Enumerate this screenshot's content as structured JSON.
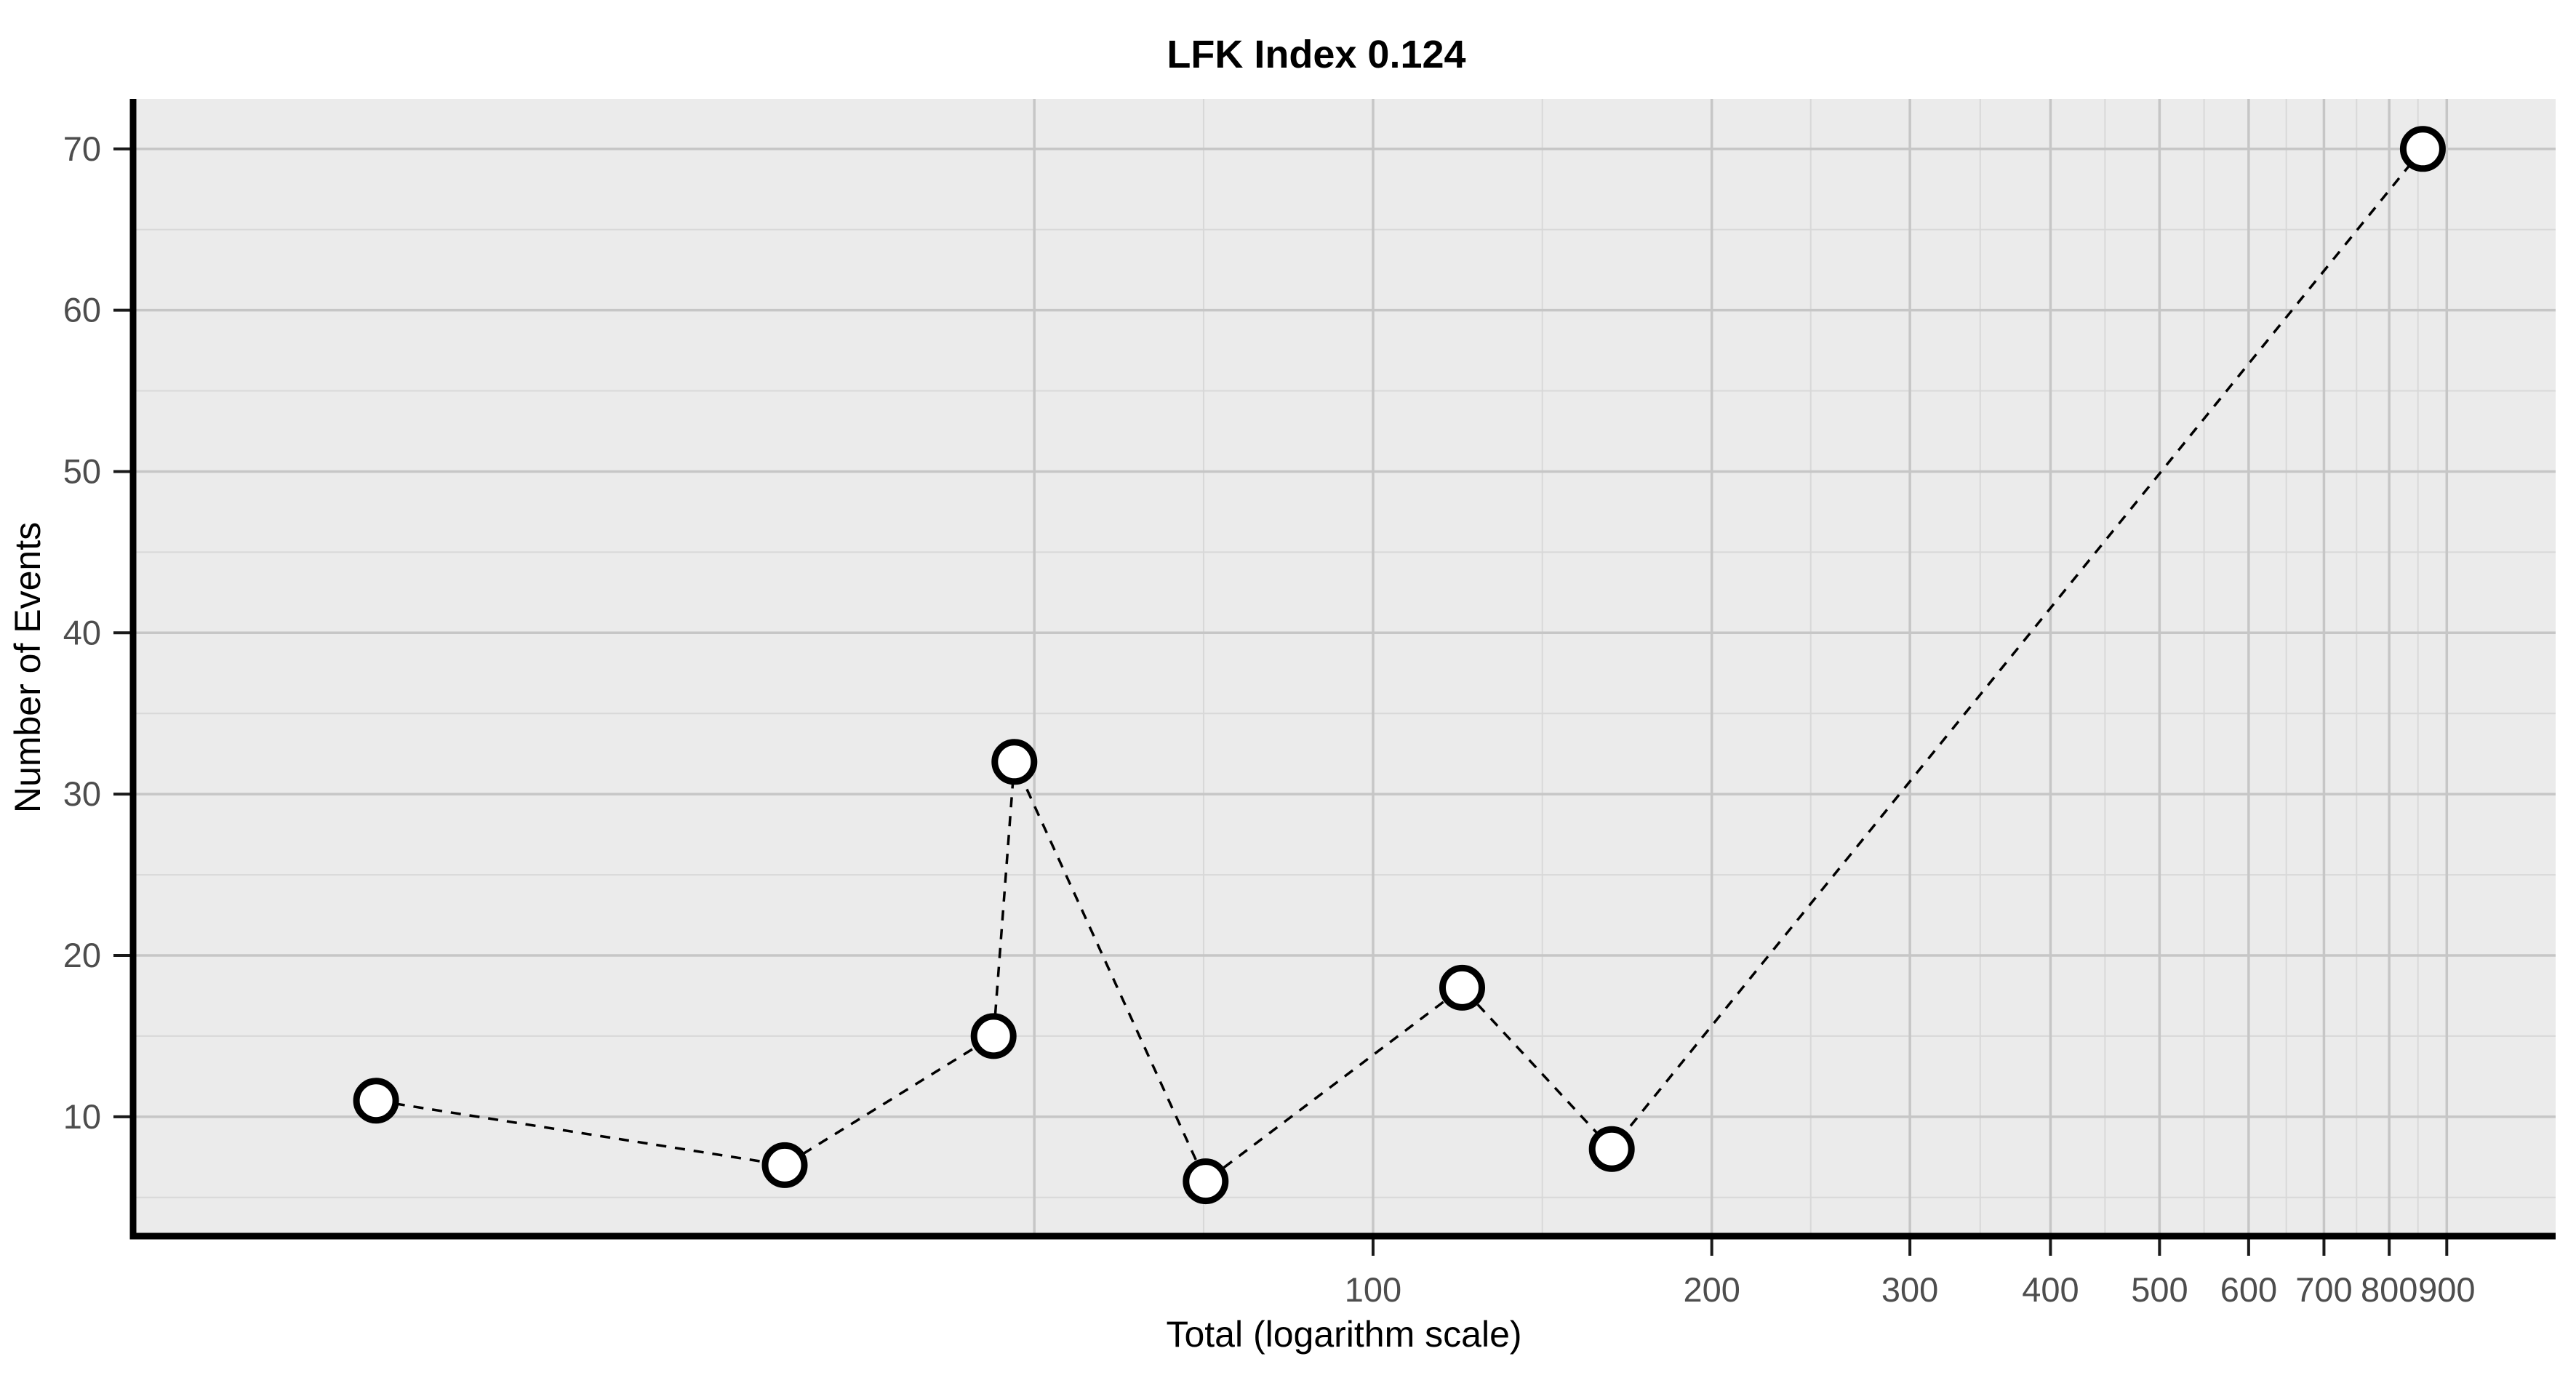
{
  "chart_data": {
    "type": "scatter",
    "title": "LFK Index 0.124",
    "xlabel": "Total (logarithm scale)",
    "ylabel": "Number of Events",
    "x_scale": "log10",
    "y_scale": "linear",
    "x": [
      13,
      30,
      46,
      48,
      71,
      120,
      163,
      857
    ],
    "y": [
      11,
      7,
      15,
      32,
      6,
      18,
      8,
      70
    ],
    "line_style": "dashed",
    "marker": "open-circle-white-fill",
    "x_ticks": [
      100,
      200,
      300,
      400,
      500,
      600,
      700,
      800,
      900
    ],
    "x_tick_labels": [
      "100",
      "200",
      "300",
      "400",
      "500",
      "600",
      "700",
      "800",
      "900"
    ],
    "y_ticks": [
      10,
      20,
      30,
      40,
      50,
      60,
      70
    ],
    "y_tick_labels": [
      "10",
      "20",
      "30",
      "40",
      "50",
      "60",
      "70"
    ],
    "x_grid_major": [
      50,
      100,
      200,
      300,
      400,
      500,
      600,
      700,
      800,
      900
    ],
    "x_grid_minor": [
      70.7,
      141.4,
      244.9,
      346.4,
      447.2,
      547.7,
      648.1,
      748.3,
      848.5
    ],
    "y_grid_major": [
      10,
      20,
      30,
      40,
      50,
      60,
      70
    ],
    "y_grid_minor": [
      5,
      15,
      25,
      35,
      45,
      55,
      65
    ],
    "x_domain_log10": [
      0.898,
      3.051
    ],
    "y_domain": [
      2.6,
      73.1
    ],
    "grid": "on",
    "legend": "none",
    "colors": {
      "panel_background": "#ebebeb",
      "grid_major": "#c6c6c6",
      "grid_minor": "#d8d8d8",
      "axis_line": "#000000",
      "tick_mark": "#1a1a1a",
      "tick_label": "#4d4d4d",
      "title": "#000000",
      "line": "#000000",
      "marker_stroke": "#000000",
      "marker_fill": "#ffffff",
      "page_background": "#ffffff"
    }
  }
}
